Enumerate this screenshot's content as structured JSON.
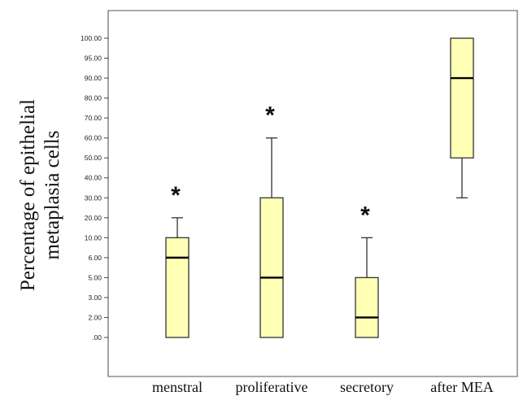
{
  "chart_data": {
    "type": "box",
    "ylabel_lines": [
      "Percentage of epithelial",
      "metaplasia cells"
    ],
    "xlabel": "",
    "yticks": [
      ".00",
      "2.00",
      "3.00",
      "5.00",
      "6.00",
      "10.00",
      "20.00",
      "30.00",
      "40.00",
      "50.00",
      "60.00",
      "70.00",
      "80.00",
      "90.00",
      "95.00",
      "100.00"
    ],
    "categories": [
      "menstral",
      "proliferative",
      "secretory",
      "after MEA"
    ],
    "boxes": [
      {
        "category": "menstral",
        "min": ".00",
        "q1": ".00",
        "median": "6.00",
        "q3": "10.00",
        "max": "20.00",
        "marker": "*"
      },
      {
        "category": "proliferative",
        "min": ".00",
        "q1": ".00",
        "median": "5.00",
        "q3": "30.00",
        "max": "60.00",
        "marker": "*"
      },
      {
        "category": "secretory",
        "min": ".00",
        "q1": ".00",
        "median": "2.00",
        "q3": "5.00",
        "max": "10.00",
        "marker": "*"
      },
      {
        "category": "after MEA",
        "min": "30.00",
        "q1": "50.00",
        "median": "90.00",
        "q3": "100.00",
        "max": "100.00",
        "marker": ""
      }
    ],
    "box_fill": "#ffffb5",
    "box_stroke": "#333333",
    "grid": false
  }
}
